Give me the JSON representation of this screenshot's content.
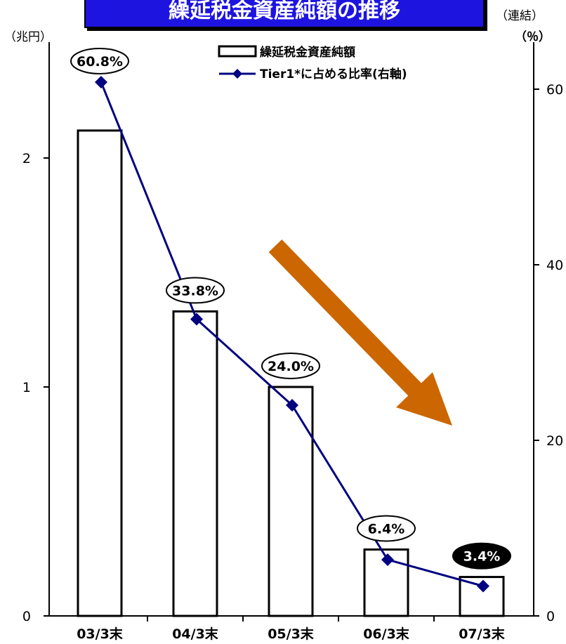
{
  "header": {
    "title": "繰延税金資産純額の推移",
    "note": "（連結）",
    "left_unit": "（兆円）",
    "right_unit": "（％）"
  },
  "colors": {
    "title_bg": "#1d14e0",
    "line": "#000080",
    "arrow": "#cc6600",
    "bar_fill": "#ffffff",
    "bar_stroke": "#000000"
  },
  "chart_data": {
    "type": "bar",
    "categories": [
      "03/3末",
      "04/3末",
      "05/3末",
      "06/3末",
      "07/3末"
    ],
    "series": [
      {
        "name": "繰延税金資産純額",
        "type": "bar",
        "axis": "left",
        "values": [
          2.12,
          1.33,
          1.0,
          0.29,
          0.17
        ]
      },
      {
        "name": "Tier1*に占める比率(右軸)",
        "type": "line",
        "axis": "right",
        "values": [
          60.8,
          33.8,
          24.0,
          6.4,
          3.4
        ]
      }
    ],
    "data_labels": [
      "60.8%",
      "33.8%",
      "24.0%",
      "6.4%",
      "3.4%"
    ],
    "highlighted_label_index": 4,
    "y_left": {
      "ticks": [
        "0",
        "1",
        "2"
      ],
      "ylim": [
        0,
        2.5
      ]
    },
    "y_right": {
      "ticks": [
        "0",
        "20",
        "40",
        "60"
      ],
      "ylim": [
        0,
        66
      ]
    },
    "legend_placement": "top-center",
    "trend_arrow": "down-right",
    "grid": false
  }
}
